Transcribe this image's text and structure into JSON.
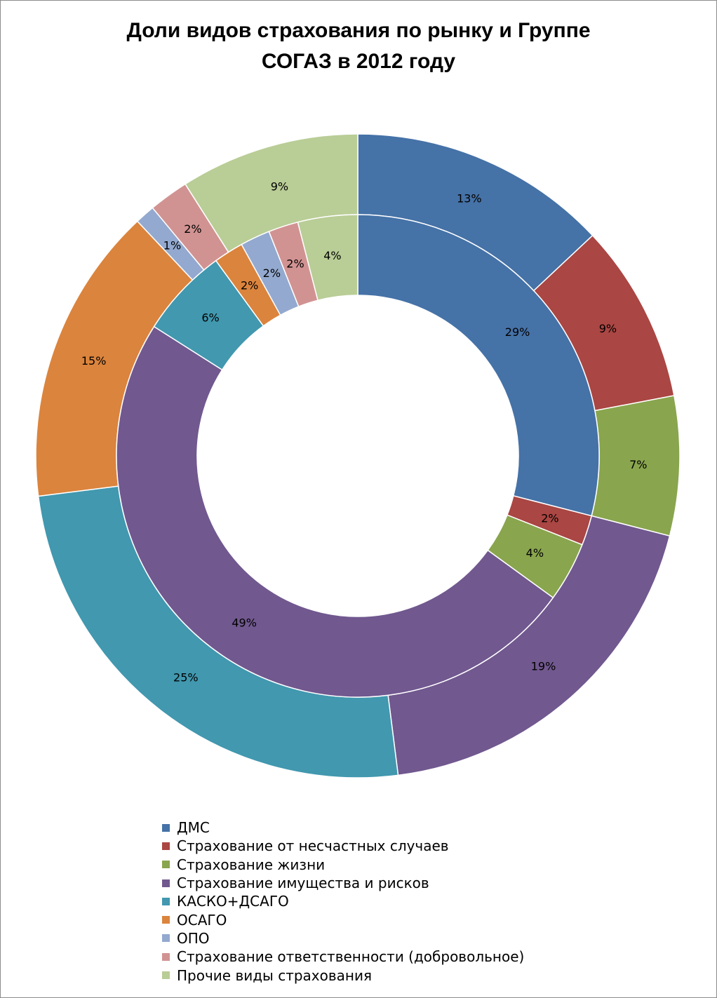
{
  "chart_data": {
    "type": "donut",
    "title_lines": [
      "Доли видов страхования по рынку и Группе",
      "СОГАЗ в 2012 году"
    ],
    "categories": [
      "ДМС",
      "Страхование от несчастных случаев",
      "Страхование жизни",
      "Страхование имущества и рисков",
      "КАСКО+ДСАГО",
      "ОСАГО",
      "ОПО",
      "Страхование ответственности (добровольное)",
      "Прочие виды страхования"
    ],
    "colors": [
      "#4572a7",
      "#aa4643",
      "#89a54e",
      "#71588f",
      "#4198af",
      "#db843d",
      "#93a9cf",
      "#d19392",
      "#b9cd96"
    ],
    "rings": [
      {
        "ring": "outer",
        "values": [
          13,
          9,
          7,
          19,
          25,
          15,
          1,
          2,
          9
        ],
        "labels": [
          "13%",
          "9%",
          "7%",
          "19%",
          "25%",
          "15%",
          "1%",
          "2%",
          "9%"
        ]
      },
      {
        "ring": "inner",
        "values": [
          29,
          2,
          4,
          49,
          6,
          2,
          2,
          2,
          4
        ],
        "labels": [
          "29%",
          "2%",
          "4%",
          "49%",
          "6%",
          "2%",
          "2%",
          "2%",
          "4%"
        ]
      }
    ],
    "legend_position": "bottom"
  }
}
